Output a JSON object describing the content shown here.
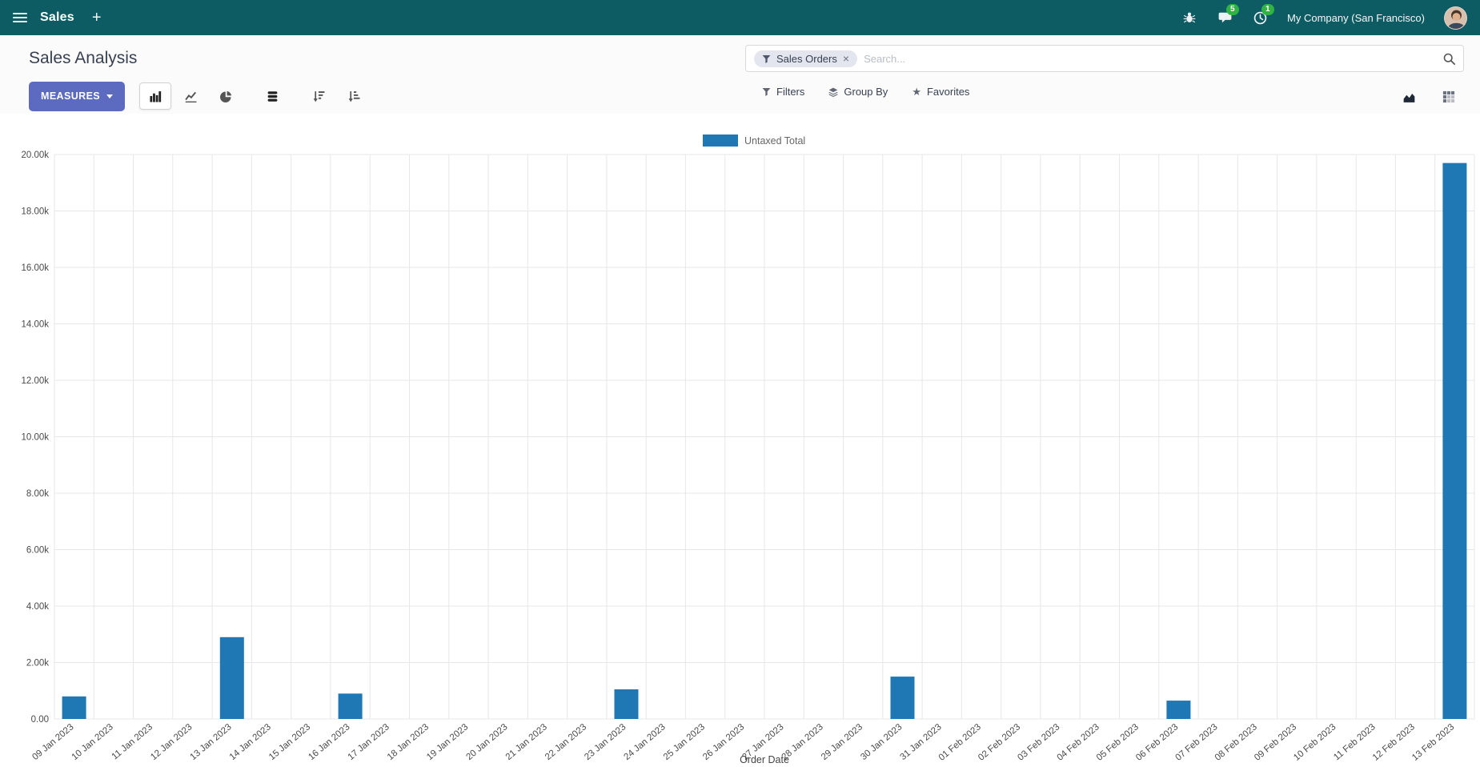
{
  "navbar": {
    "app_name": "Sales",
    "new_label": "+",
    "messages_badge": "5",
    "activities_badge": "1",
    "company_name": "My Company (San Francisco)"
  },
  "control_panel": {
    "title": "Sales Analysis",
    "search": {
      "facet_label": "Sales Orders",
      "facet_remove": "×",
      "placeholder": "Search..."
    },
    "measures_label": "MEASURES",
    "filters_label": "Filters",
    "group_by_label": "Group By",
    "favorites_label": "Favorites",
    "favorites_icon_glyph": "★"
  },
  "colors": {
    "navbar_bg": "#0d5c63",
    "primary_button": "#5c6bc0",
    "badge_green": "#2fb344",
    "bar_color": "#1f77b4",
    "grid": "#e7e7e7"
  },
  "chart_data": {
    "type": "bar",
    "title": "",
    "xlabel": "Order Date",
    "ylabel": "",
    "ylim": [
      0,
      20000
    ],
    "grid": true,
    "legend_position": "top",
    "y_ticks": [
      "0.00",
      "2.00k",
      "4.00k",
      "6.00k",
      "8.00k",
      "10.00k",
      "12.00k",
      "14.00k",
      "16.00k",
      "18.00k",
      "20.00k"
    ],
    "categories": [
      "09 Jan 2023",
      "10 Jan 2023",
      "11 Jan 2023",
      "12 Jan 2023",
      "13 Jan 2023",
      "14 Jan 2023",
      "15 Jan 2023",
      "16 Jan 2023",
      "17 Jan 2023",
      "18 Jan 2023",
      "19 Jan 2023",
      "20 Jan 2023",
      "21 Jan 2023",
      "22 Jan 2023",
      "23 Jan 2023",
      "24 Jan 2023",
      "25 Jan 2023",
      "26 Jan 2023",
      "27 Jan 2023",
      "28 Jan 2023",
      "29 Jan 2023",
      "30 Jan 2023",
      "31 Jan 2023",
      "01 Feb 2023",
      "02 Feb 2023",
      "03 Feb 2023",
      "04 Feb 2023",
      "05 Feb 2023",
      "06 Feb 2023",
      "07 Feb 2023",
      "08 Feb 2023",
      "09 Feb 2023",
      "10 Feb 2023",
      "11 Feb 2023",
      "12 Feb 2023",
      "13 Feb 2023"
    ],
    "series": [
      {
        "name": "Untaxed Total",
        "color": "#1f77b4",
        "values": [
          800,
          0,
          0,
          0,
          2900,
          0,
          0,
          900,
          0,
          0,
          0,
          0,
          0,
          0,
          1050,
          0,
          0,
          0,
          0,
          0,
          0,
          1500,
          0,
          0,
          0,
          0,
          0,
          0,
          650,
          0,
          0,
          0,
          0,
          0,
          0,
          19700
        ]
      }
    ]
  }
}
